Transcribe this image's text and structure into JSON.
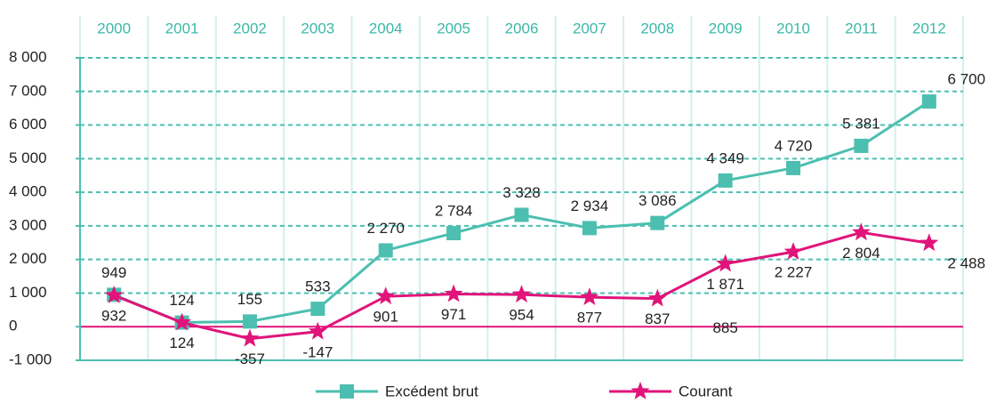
{
  "chart_data": {
    "type": "line",
    "categories": [
      "2000",
      "2001",
      "2002",
      "2003",
      "2004",
      "2005",
      "2006",
      "2007",
      "2008",
      "2009",
      "2010",
      "2011",
      "2012"
    ],
    "series": [
      {
        "name": "Excédent brut",
        "color": "#4cbfb0",
        "values": [
          949,
          124,
          155,
          533,
          2270,
          2784,
          3328,
          2934,
          3086,
          4349,
          4720,
          5381,
          6700
        ],
        "value_labels": [
          "949",
          "124",
          "155",
          "533",
          "2 270",
          "2 784",
          "3 328",
          "2 934",
          "3 086",
          "4 349",
          "4 720",
          "5 381",
          "6 700"
        ]
      },
      {
        "name": "Courant",
        "color": "#e0147a",
        "values": [
          932,
          124,
          -357,
          -147,
          901,
          971,
          954,
          877,
          837,
          1871,
          2227,
          2804,
          2488
        ],
        "value_labels": [
          "932",
          "124",
          "-357",
          "-147",
          "901",
          "971",
          "954",
          "877",
          "837",
          "1 871",
          "2 227",
          "2 804",
          "2 488"
        ]
      }
    ],
    "annotations": [
      "885"
    ],
    "ylim": [
      -1000,
      8000
    ],
    "yticks": [
      {
        "value": -1000,
        "label": "-1 000"
      },
      0,
      {
        "value": 1000,
        "label": "1 000"
      },
      {
        "value": 2000,
        "label": "2 000"
      },
      {
        "value": 3000,
        "label": "3 000"
      },
      {
        "value": 4000,
        "label": "4 000"
      },
      {
        "value": 5000,
        "label": "5 000"
      },
      {
        "value": 6000,
        "label": "6 000"
      },
      {
        "value": 7000,
        "label": "7 000"
      },
      {
        "value": 8000,
        "label": "8 000"
      }
    ],
    "grid": true,
    "legend": "bottom"
  }
}
